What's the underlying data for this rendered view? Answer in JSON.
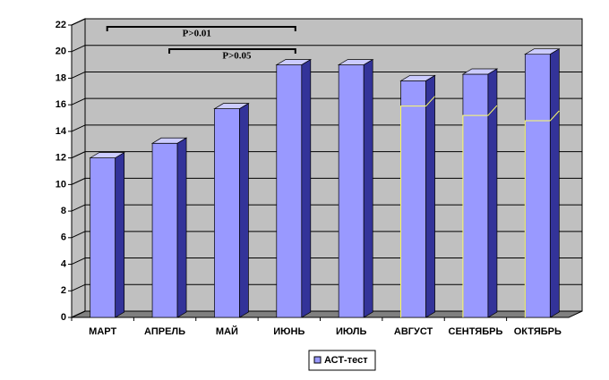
{
  "chart_data": {
    "type": "bar3d",
    "categories": [
      "МАРТ",
      "АПРЕЛЬ",
      "МАЙ",
      "ИЮНЬ",
      "ИЮЛЬ",
      "АВГУСТ",
      "СЕНТЯБРЬ",
      "ОКТЯБРЬ"
    ],
    "series": [
      {
        "name": "АСТ-тест",
        "color": "#9999ff",
        "values": [
          12,
          13.1,
          15.7,
          19,
          19,
          17.8,
          18.3,
          19.8
        ]
      }
    ],
    "inner_levels": [
      null,
      null,
      null,
      null,
      null,
      15.9,
      15.2,
      14.8
    ],
    "inner_color": "#ffff66",
    "annotations": [
      {
        "text": "P>0.01",
        "from": "МАРТ",
        "to": "ИЮНЬ"
      },
      {
        "text": "P>0.05",
        "from": "АПРЕЛЬ",
        "to": "ИЮНЬ"
      }
    ],
    "ylim": [
      0,
      22
    ],
    "yticks": [
      0,
      2,
      4,
      6,
      8,
      10,
      12,
      14,
      16,
      18,
      20,
      22
    ],
    "grid": true
  }
}
